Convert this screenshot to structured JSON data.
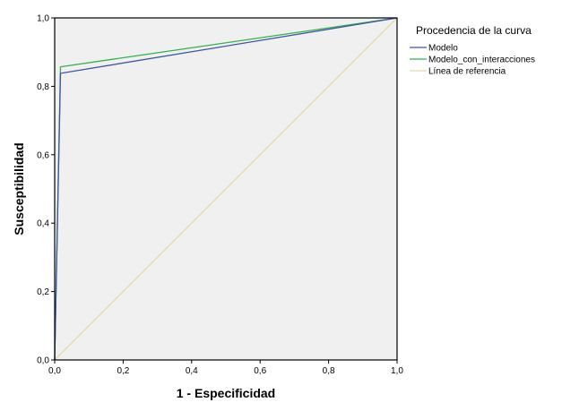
{
  "chart_data": {
    "type": "line",
    "title": "",
    "xlabel": "1 - Especificidad",
    "ylabel": "Susceptibilidad",
    "xlim": [
      0,
      1
    ],
    "ylim": [
      0,
      1
    ],
    "x_ticks": [
      "0,0",
      "0,2",
      "0,4",
      "0,6",
      "0,8",
      "1,0"
    ],
    "y_ticks": [
      "0,0",
      "0,2",
      "0,4",
      "0,6",
      "0,8",
      "1,0"
    ],
    "grid": false,
    "plot_background": "#f0f0f0",
    "legend": {
      "title": "Procedencia de la curva",
      "placement": "top-right, outside plot"
    },
    "series": [
      {
        "name": "Modelo",
        "color": "#3e55a5",
        "x": [
          0.0,
          0.017,
          1.0
        ],
        "y": [
          0.0,
          0.838,
          1.0
        ]
      },
      {
        "name": "Modelo_con_interacciones",
        "color": "#2db34a",
        "x": [
          0.0,
          0.017,
          1.0
        ],
        "y": [
          0.0,
          0.857,
          1.0
        ]
      },
      {
        "name": "Línea de referencia",
        "color": "#e6d8a8",
        "x": [
          0.0,
          1.0
        ],
        "y": [
          0.0,
          1.0
        ]
      }
    ]
  }
}
